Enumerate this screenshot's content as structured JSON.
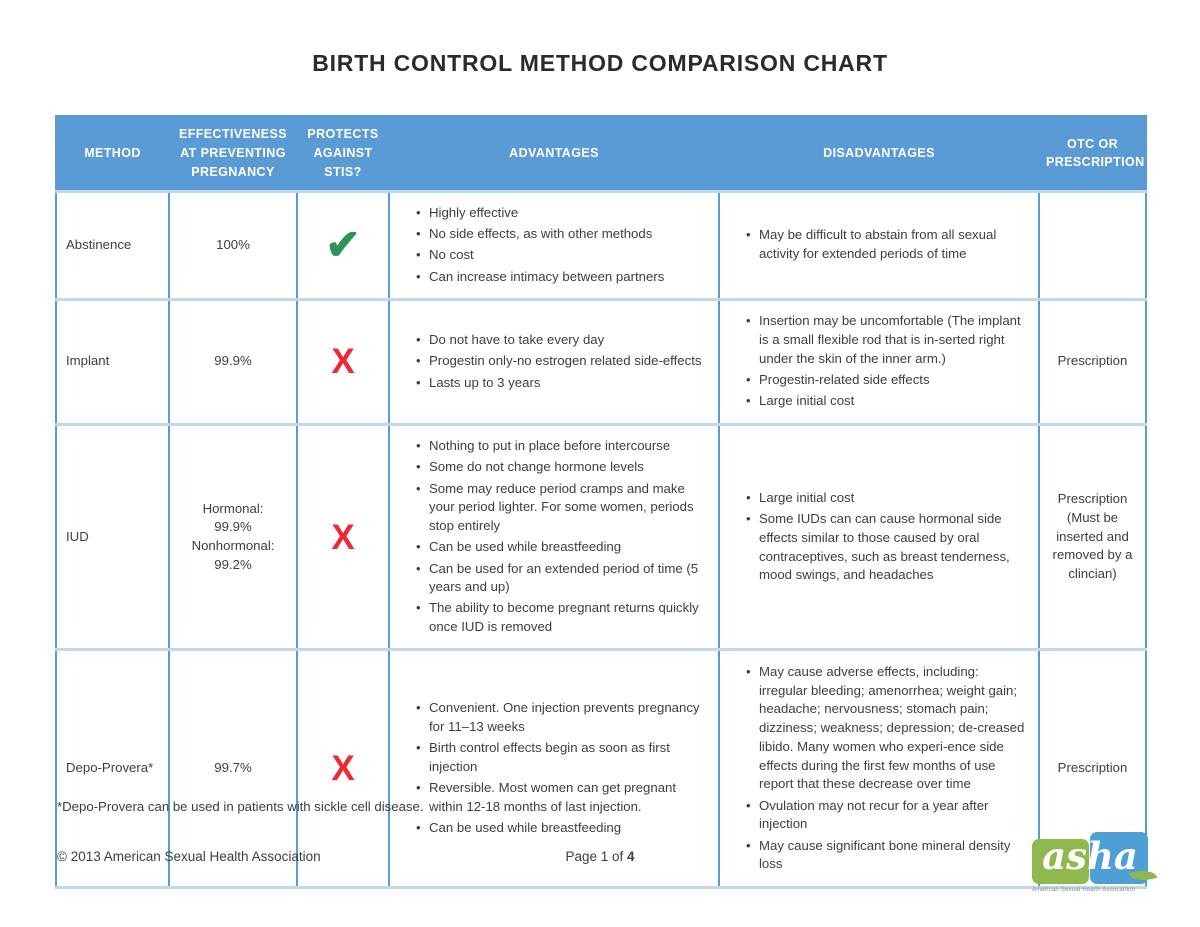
{
  "page": {
    "title": "BIRTH CONTROL METHOD COMPARISON CHART",
    "footnote": "*Depo-Provera can be used in patients with sickle cell disease.",
    "copyright": "© 2013 American Sexual Health Association",
    "page_label": "Page 1 of ",
    "page_total": "4"
  },
  "colors": {
    "header_blue": "#5B9BD5",
    "light_border_blue": "#BFD9EF",
    "check_green": "#2E9457",
    "x_red": "#EC2A33",
    "logo_green": "#8FB94E",
    "logo_blue": "#4D9FD6"
  },
  "icons": {
    "check": "✔",
    "x": "X"
  },
  "logo": {
    "script": "asha",
    "subtext": "American Sexual Health Association"
  },
  "table": {
    "headers": [
      "METHOD",
      "EFFECTIVENESS AT PREVENTING PREGNANCY",
      "PROTECTS AGAINST STIS?",
      "ADVANTAGES",
      "DISADVANTAGES",
      "OTC OR PRESCRIPTION"
    ],
    "rows": [
      {
        "method": "Abstinence",
        "effectiveness_lines": [
          "100%"
        ],
        "protects_stis": "yes",
        "symbol": "✔",
        "advantages": [
          "Highly effective",
          "No side effects, as with other methods",
          "No cost",
          "Can increase intimacy between partners"
        ],
        "disadvantages": [
          "May be difficult to abstain from all sexual activity for extended periods of time"
        ],
        "otc": ""
      },
      {
        "method": "Implant",
        "effectiveness_lines": [
          "99.9%"
        ],
        "protects_stis": "no",
        "symbol": "X",
        "advantages": [
          "Do not have to take every day",
          "Progestin only-no estrogen related side-effects",
          "Lasts up to 3 years"
        ],
        "disadvantages": [
          "Insertion may be uncomfortable (The implant is a small flexible rod that is in-serted right under the skin of the inner arm.)",
          "Progestin-related side effects",
          "Large initial cost"
        ],
        "otc": "Prescription"
      },
      {
        "method": "IUD",
        "effectiveness_lines": [
          "Hormonal:",
          "99.9%",
          "Nonhormonal:",
          "99.2%"
        ],
        "protects_stis": "no",
        "symbol": "X",
        "advantages": [
          "Nothing to put in place before intercourse",
          "Some do not change hormone levels",
          "Some may reduce period cramps and make your period lighter. For some women, periods stop entirely",
          "Can be used while breastfeeding",
          "Can be used for an extended period of time (5 years and up)",
          "The ability to become pregnant returns quickly once IUD is removed"
        ],
        "disadvantages": [
          "Large initial cost",
          "Some IUDs can can cause hormonal side effects similar to those caused by oral contraceptives, such as breast tenderness, mood swings, and headaches"
        ],
        "otc": "Prescription (Must be inserted and removed by a clincian)"
      },
      {
        "method": "Depo-Provera*",
        "effectiveness_lines": [
          "99.7%"
        ],
        "protects_stis": "no",
        "symbol": "X",
        "advantages": [
          "Convenient. One injection prevents pregnancy for 11–13 weeks",
          "Birth control effects begin as soon as first injection",
          "Reversible. Most women can get pregnant within 12-18 months of last injection.",
          "Can be used while breastfeeding"
        ],
        "disadvantages": [
          "May cause adverse effects, including: irregular bleeding; amenorrhea; weight gain; headache; nervousness; stomach pain; dizziness; weakness; depression; de-creased libido. Many women who experi-ence side effects during the first few months of use report that these decrease over time",
          "Ovulation may not recur for a year after injection",
          "May cause significant bone mineral density loss"
        ],
        "otc": "Prescription"
      }
    ]
  }
}
